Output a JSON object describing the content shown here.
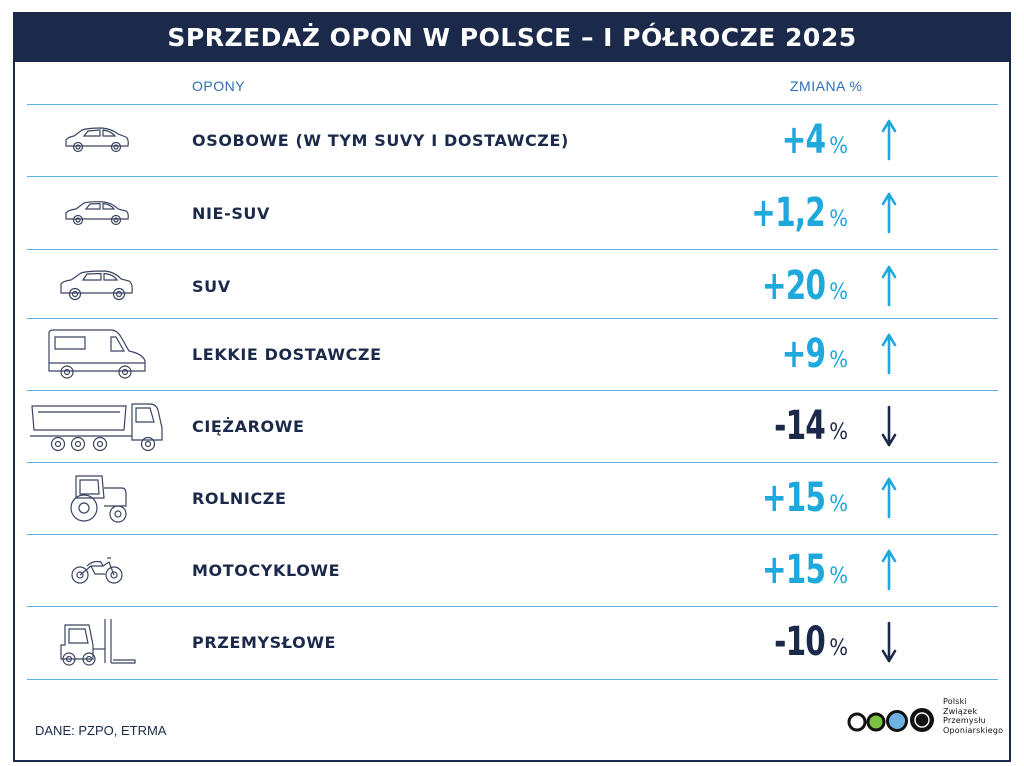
{
  "title": "SPRZEDAŻ OPON W POLSCE – I PÓŁROCZE 2025",
  "columns": {
    "left": "OPONY",
    "right": "ZMIANA %"
  },
  "colors": {
    "navy": "#1b2a4a",
    "cyan": "#1ea8dc",
    "line": "#5ab0e0"
  },
  "rows": [
    {
      "icon": "hatchback-car-icon",
      "label": "OSOBOWE (W TYM SUVY I DOSTAWCZE)",
      "value": "+4",
      "unit": "%",
      "direction": "up"
    },
    {
      "icon": "sedan-car-icon",
      "label": "NIE-SUV",
      "value": "+1,2",
      "unit": "%",
      "direction": "up"
    },
    {
      "icon": "suv-car-icon",
      "label": "SUV",
      "value": "+20",
      "unit": "%",
      "direction": "up"
    },
    {
      "icon": "van-icon",
      "label": "LEKKIE DOSTAWCZE",
      "value": "+9",
      "unit": "%",
      "direction": "up"
    },
    {
      "icon": "dump-truck-icon",
      "label": "CIĘŻAROWE",
      "value": "-14",
      "unit": "%",
      "direction": "down"
    },
    {
      "icon": "tractor-icon",
      "label": "ROLNICZE",
      "value": "+15",
      "unit": "%",
      "direction": "up"
    },
    {
      "icon": "motorcycle-icon",
      "label": "MOTOCYKLOWE",
      "value": "+15",
      "unit": "%",
      "direction": "up"
    },
    {
      "icon": "forklift-icon",
      "label": "PRZEMYSŁOWE",
      "value": "-10",
      "unit": "%",
      "direction": "down"
    }
  ],
  "source": "DANE: PZPO, ETRMA",
  "logo": {
    "lines": [
      "Polski",
      "Związek",
      "Przemysłu",
      "Oponiarskiego"
    ]
  }
}
